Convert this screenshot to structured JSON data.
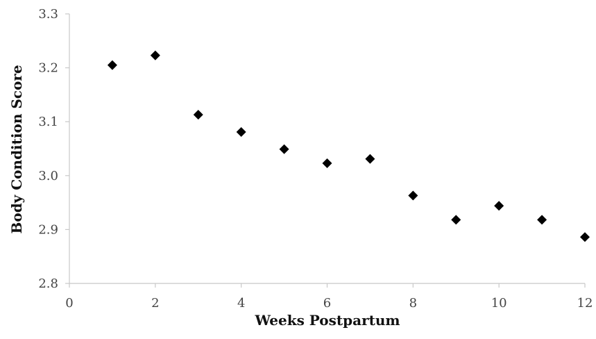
{
  "chart_data": {
    "type": "scatter",
    "title": "",
    "xlabel": "Weeks Postpartum",
    "ylabel": "Body Condition Score",
    "xlim": [
      0,
      12
    ],
    "ylim": [
      2.8,
      3.3
    ],
    "xticks": [
      0,
      2,
      4,
      6,
      8,
      10,
      12
    ],
    "yticks": [
      2.8,
      2.9,
      3.0,
      3.1,
      3.2,
      3.3
    ],
    "ytick_labels": [
      "2.8",
      "2.9",
      "3.0",
      "3.1",
      "3.2",
      "3.3"
    ],
    "xtick_labels": [
      "0",
      "2",
      "4",
      "6",
      "8",
      "10",
      "12"
    ],
    "grid": false,
    "marker": "diamond",
    "marker_color": "#000000",
    "points": [
      {
        "x": 1,
        "y": 3.205
      },
      {
        "x": 2,
        "y": 3.223
      },
      {
        "x": 3,
        "y": 3.113
      },
      {
        "x": 4,
        "y": 3.081
      },
      {
        "x": 5,
        "y": 3.049
      },
      {
        "x": 6,
        "y": 3.023
      },
      {
        "x": 7,
        "y": 3.031
      },
      {
        "x": 8,
        "y": 2.963
      },
      {
        "x": 9,
        "y": 2.918
      },
      {
        "x": 10,
        "y": 2.944
      },
      {
        "x": 11,
        "y": 2.918
      },
      {
        "x": 12,
        "y": 2.886
      }
    ]
  }
}
